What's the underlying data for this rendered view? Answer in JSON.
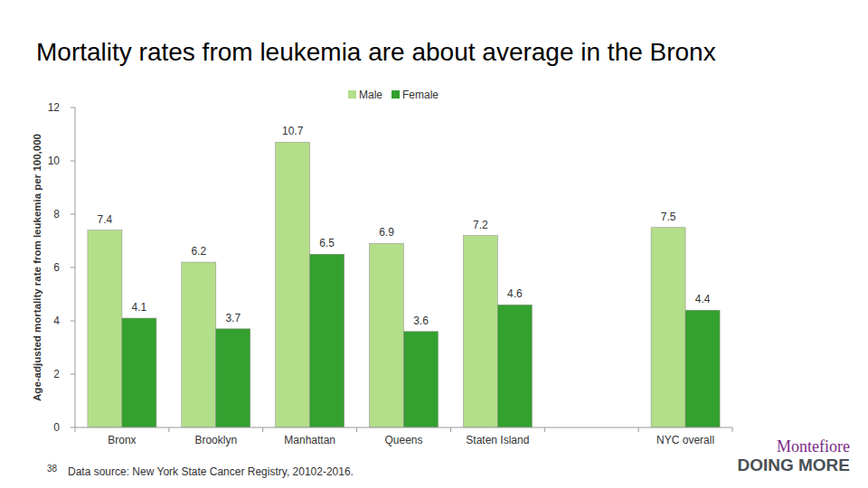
{
  "chart_data": {
    "type": "bar",
    "title": "Mortality rates from leukemia are about average in the Bronx",
    "y_label": "Age-adjusted mortality rate from leukemia per 100,000",
    "categories": [
      "Bronx",
      "Brooklyn",
      "Manhattan",
      "Queens",
      "Staten Island",
      null,
      "NYC overall"
    ],
    "series": [
      {
        "name": "Male",
        "color": "#b3de8a",
        "values": [
          7.4,
          6.2,
          10.7,
          6.9,
          7.2,
          null,
          7.5
        ]
      },
      {
        "name": "Female",
        "color": "#34a02e",
        "values": [
          4.1,
          3.7,
          6.5,
          3.6,
          4.6,
          null,
          4.4
        ]
      }
    ],
    "ylim": [
      0,
      12
    ],
    "yticks": [
      0,
      2,
      4,
      6,
      8,
      10,
      12
    ],
    "grid": false,
    "legend": "top",
    "data_labels": true
  },
  "page": {
    "page_number": "38",
    "source": "Data source: New York State Cancer Registry, 20102-2016.",
    "logo_top": "Montefiore",
    "logo_bottom": "DOING MORE"
  }
}
